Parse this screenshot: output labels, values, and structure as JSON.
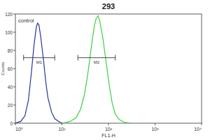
{
  "chart_data": {
    "type": "line",
    "title": "293",
    "x_label": "FL1-H",
    "y_label": "Counts",
    "log": "x",
    "xlim": [
      1,
      10000
    ],
    "xticks": [
      {
        "value": 1,
        "label": "10⁰"
      },
      {
        "value": 10,
        "label": "10¹"
      },
      {
        "value": 100,
        "label": "10²"
      },
      {
        "value": 1000,
        "label": "10³"
      },
      {
        "value": 10000,
        "label": "10⁴"
      }
    ],
    "ylim": [
      0,
      120
    ],
    "yticks": [
      0,
      20,
      40,
      60,
      80,
      100,
      120
    ],
    "series": [
      {
        "name": "control",
        "color": "#27329e",
        "x": [
          1.0,
          1.3,
          1.6,
          1.9,
          2.2,
          2.5,
          2.8,
          3.0,
          3.2,
          3.5,
          4.0,
          4.5,
          5.0,
          6.0,
          7.0,
          8.5,
          10
        ],
        "values": [
          0,
          2,
          8,
          25,
          55,
          85,
          105,
          110,
          108,
          95,
          70,
          45,
          28,
          12,
          5,
          2,
          0
        ]
      },
      {
        "color": "#3ecf3e",
        "x": [
          10,
          15,
          20,
          25,
          30,
          35,
          40,
          45,
          50,
          55,
          60,
          65,
          75,
          90,
          105,
          120,
          140,
          170,
          220,
          300
        ],
        "values": [
          0,
          2,
          6,
          15,
          30,
          50,
          72,
          92,
          108,
          116,
          118,
          112,
          95,
          65,
          40,
          22,
          10,
          4,
          1,
          0
        ]
      }
    ],
    "gates": [
      {
        "label": "M1",
        "x": [
          1.5,
          7
        ],
        "y": 72
      },
      {
        "label": "M2",
        "x": [
          22,
          140
        ],
        "y": 72
      }
    ]
  }
}
